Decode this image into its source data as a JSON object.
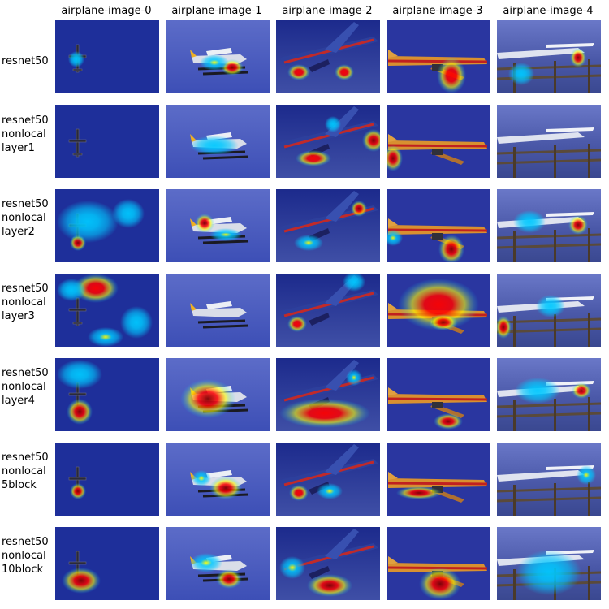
{
  "column_titles": [
    "airplane-image-0",
    "airplane-image-1",
    "airplane-image-2",
    "airplane-image-3",
    "airplane-image-4"
  ],
  "row_labels": [
    "resnet50",
    "resnet50\nnonlocal\nlayer1",
    "resnet50\nnonlocal\nlayer2",
    "resnet50\nnonlocal\nlayer3",
    "resnet50\nnonlocal\nlayer4",
    "resnet50\nnonlocal\n5block",
    "resnet50\nnonlocal\n10block"
  ],
  "image_descriptions": [
    "small propeller plane in dark sky",
    "seaplane with floats on blue sky",
    "airliner climbing against clouds",
    "DHL cargo jet side view",
    "light aircraft parked behind wooden fence"
  ],
  "heatmap_colors": [
    "#0000ff",
    "#00c8ff",
    "#ffff00",
    "#ff0000",
    "#800000"
  ]
}
